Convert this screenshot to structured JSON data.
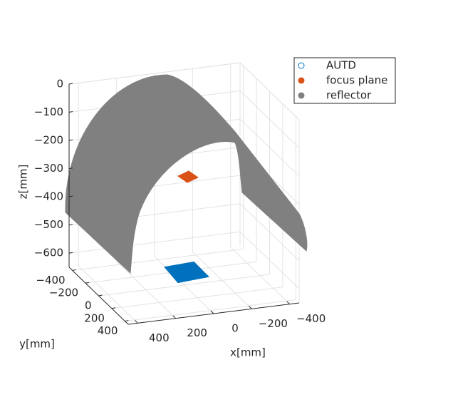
{
  "chart_data": {
    "type": "scatter3",
    "xlabel": "x[mm]",
    "ylabel": "y[mm]",
    "zlabel": "z[mm]",
    "xlim": [
      -450,
      450
    ],
    "ylim": [
      -450,
      450
    ],
    "zlim": [
      -650,
      0
    ],
    "xticks": [
      {
        "value": -400,
        "label": "−400"
      },
      {
        "value": -200,
        "label": "−200"
      },
      0,
      200,
      400
    ],
    "yticks": [
      {
        "value": -400,
        "label": "−400"
      },
      {
        "value": -200,
        "label": "−200"
      },
      0,
      200,
      400
    ],
    "zticks": [
      {
        "value": -600,
        "label": "−600"
      },
      {
        "value": -500,
        "label": "−500"
      },
      {
        "value": -400,
        "label": "−400"
      },
      {
        "value": -300,
        "label": "−300"
      },
      {
        "value": -200,
        "label": "−200"
      },
      {
        "value": -100,
        "label": "−100"
      },
      0
    ],
    "grid": true,
    "legend": "northeast",
    "series": [
      {
        "name": "AUTD",
        "color": "#0072bd"
      },
      {
        "name": "focus plane",
        "color": "#d95319"
      },
      {
        "name": "reflector",
        "color": "#808080"
      }
    ]
  }
}
